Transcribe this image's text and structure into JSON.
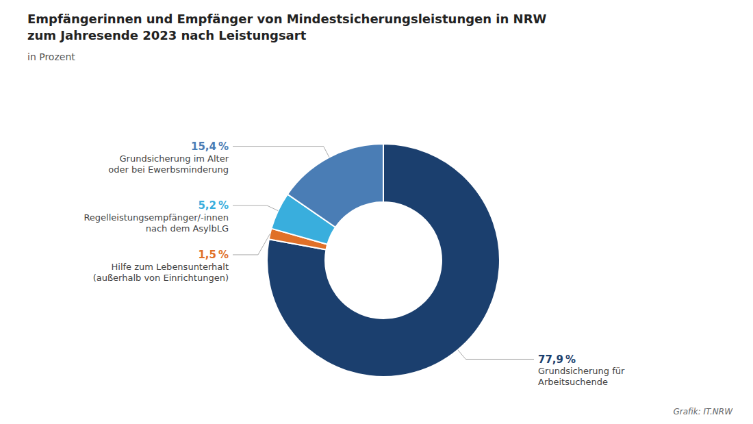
{
  "chart_data": {
    "type": "pie",
    "title": "Empfängerinnen und Empfänger von Mindestsicherungsleistungen in NRW\nzum Jahresende 2023 nach Leistungsart",
    "subtitle": "in Prozent",
    "annotations": [
      "Grafik: IT.NRW"
    ],
    "categories": [
      "Grundsicherung für\nArbeitsuchende",
      "Hilfe zum Lebensunterhalt\n(außerhalb von Einrichtungen)",
      "Regelleistungsempfänger/-innen\nnach dem AsylbLG",
      "Grundsicherung im Alter\noder bei Ewerbsminderung"
    ],
    "values": [
      77.9,
      1.5,
      5.2,
      15.4
    ],
    "value_labels": [
      "77,9 %",
      "1,5 %",
      "5,2 %",
      "15,4 %"
    ],
    "colors": [
      "#1b3f6e",
      "#e07028",
      "#39aedd",
      "#4a7db5"
    ],
    "data_labels": true
  }
}
